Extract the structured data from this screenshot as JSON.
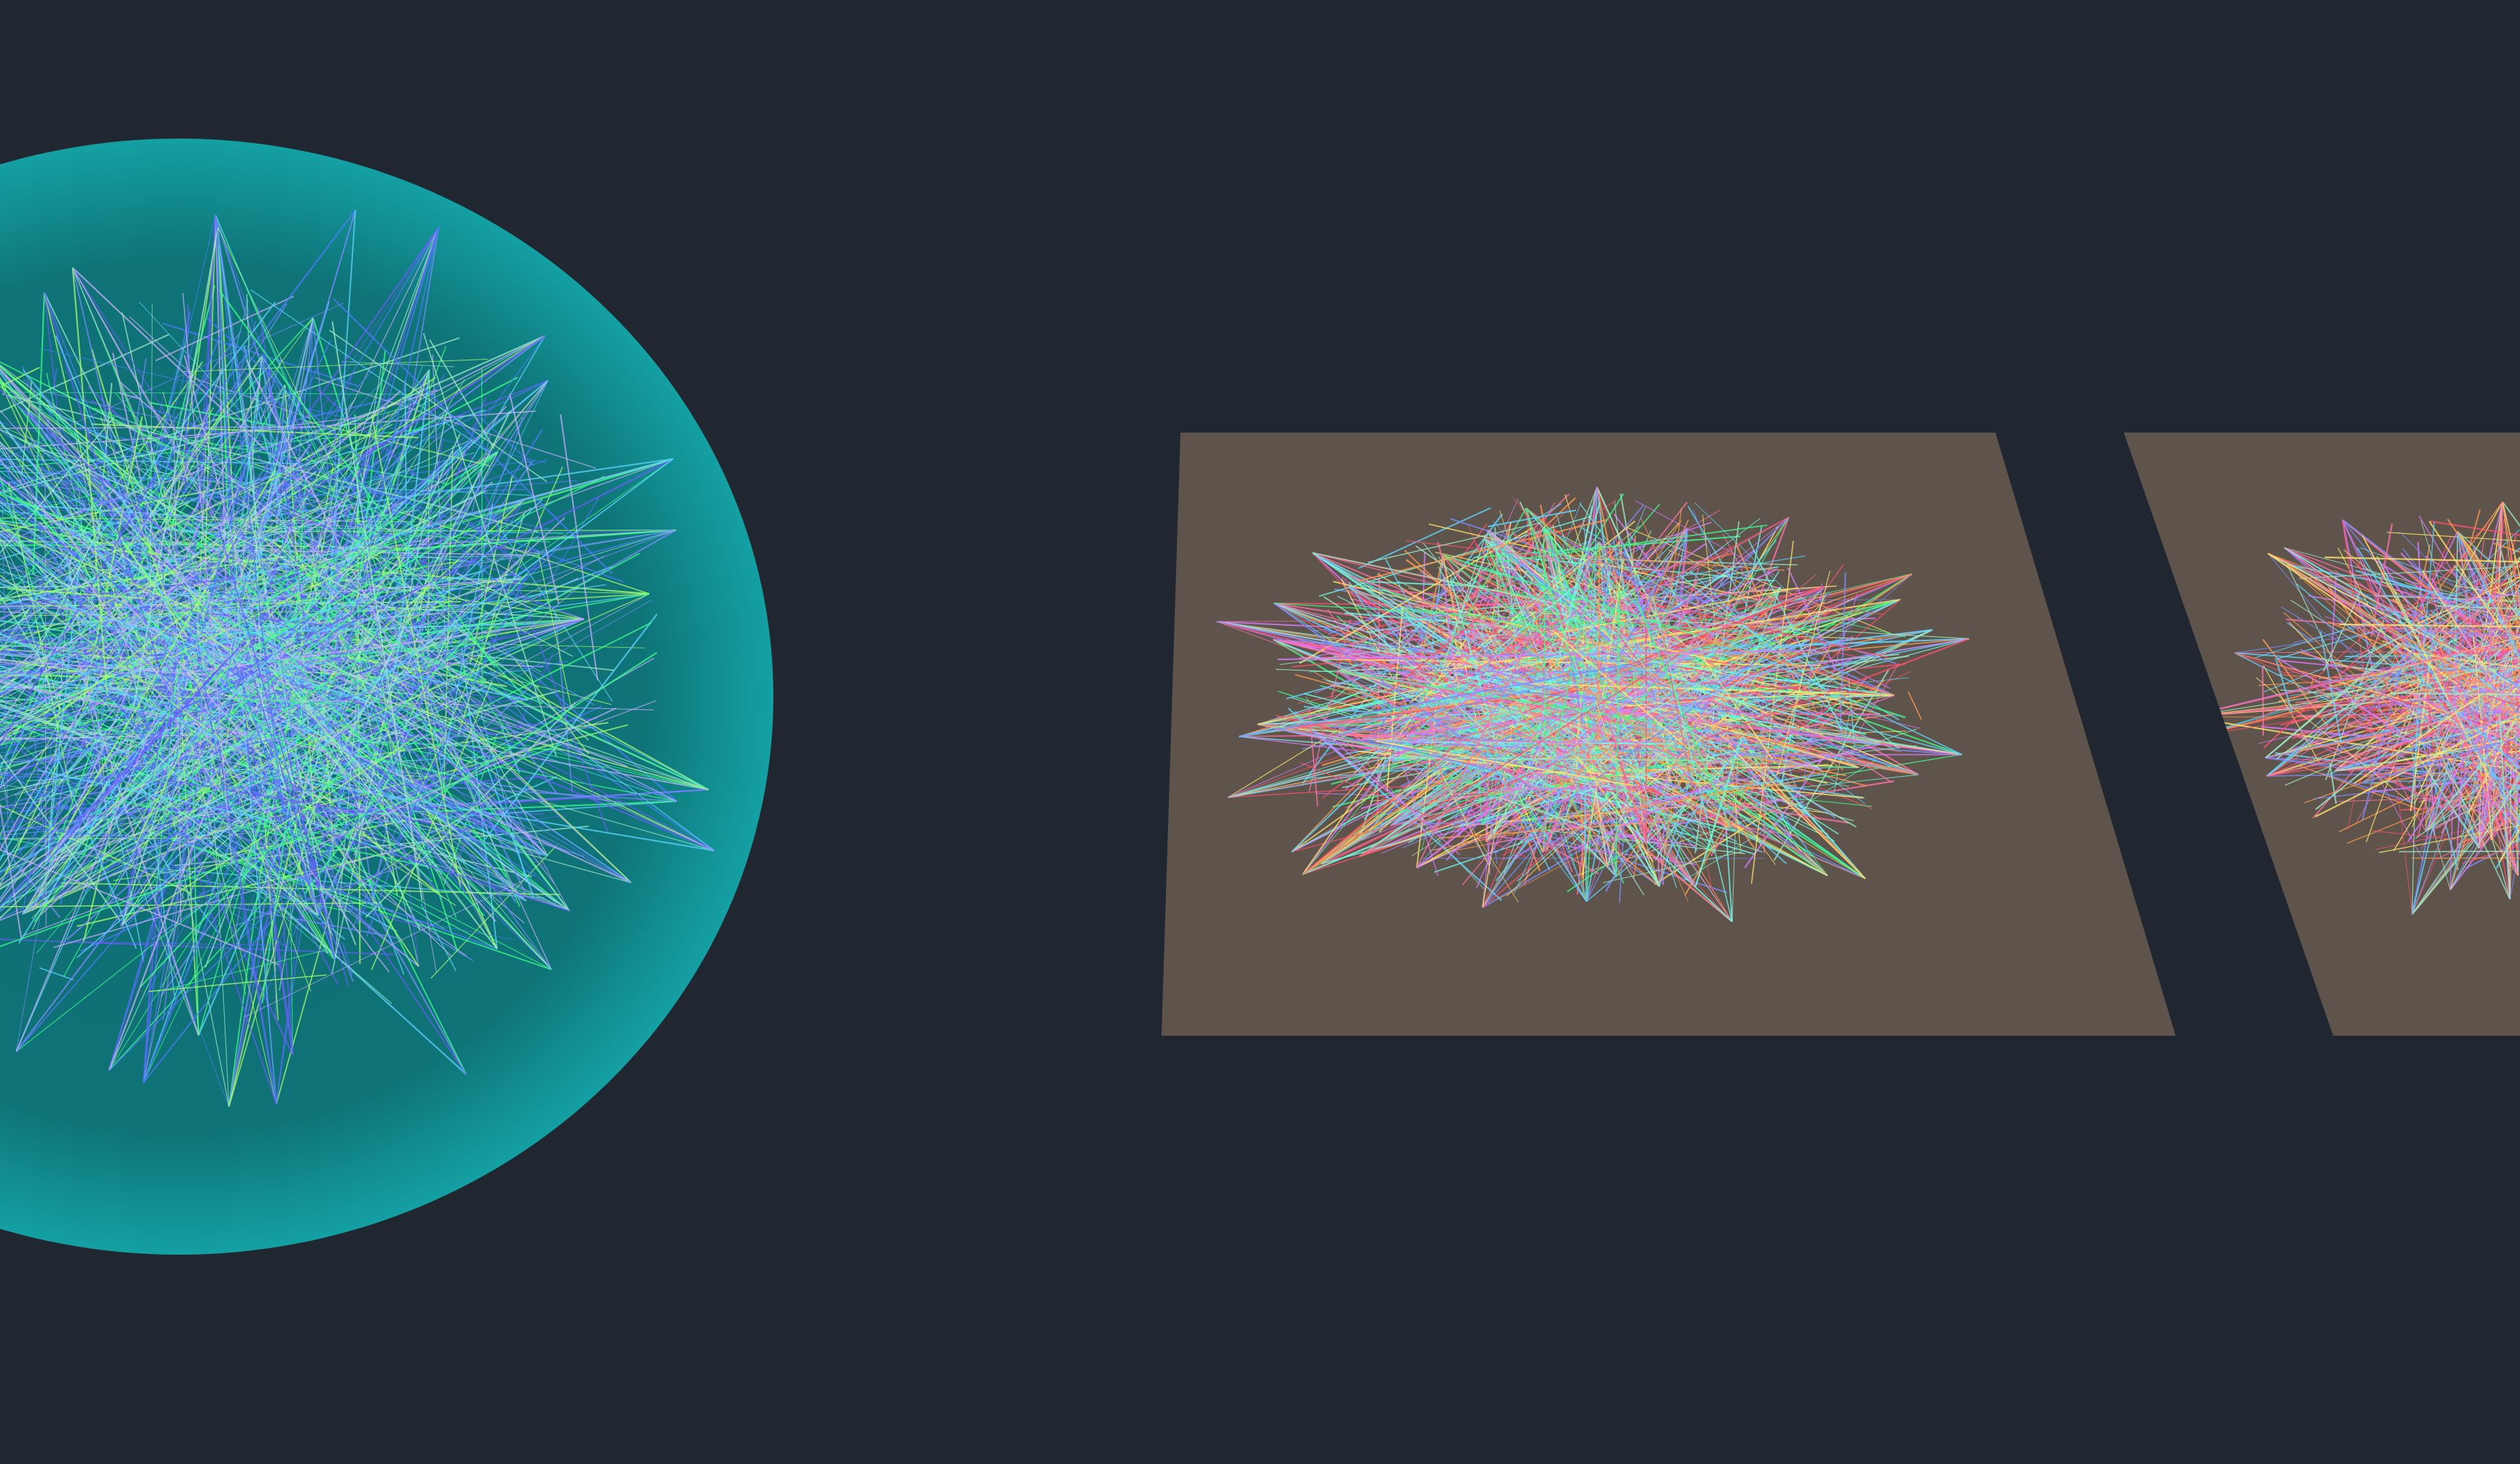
{
  "canvas": {
    "background_color": "#212730"
  },
  "sphere": {
    "icon": "network-sphere",
    "fill_color_light": "#14a0a3",
    "fill_color_dark": "#0e6c72",
    "edge_palette": [
      "#7b8cff",
      "#5fd6ff",
      "#3cff8a",
      "#a7ff6b",
      "#6b5cff",
      "#9de9c6",
      "#c9b0ff",
      "#4f7bff"
    ]
  },
  "plane_left": {
    "icon": "network-plane",
    "fill_color": "#5e544c",
    "edge_palette": [
      "#ff6fa8",
      "#7b8cff",
      "#5fd6ff",
      "#3cff8a",
      "#ffe66b",
      "#ff9a4f",
      "#d77bff",
      "#9de9c6",
      "#ff4f6b",
      "#6bffea"
    ]
  },
  "plane_right": {
    "icon": "network-plane",
    "fill_color": "#5e544c",
    "edge_palette": [
      "#ff6fa8",
      "#7b8cff",
      "#d77bff",
      "#ff9a4f",
      "#5fd6ff",
      "#ffe66b",
      "#9de9c6",
      "#ff4f6b"
    ]
  }
}
